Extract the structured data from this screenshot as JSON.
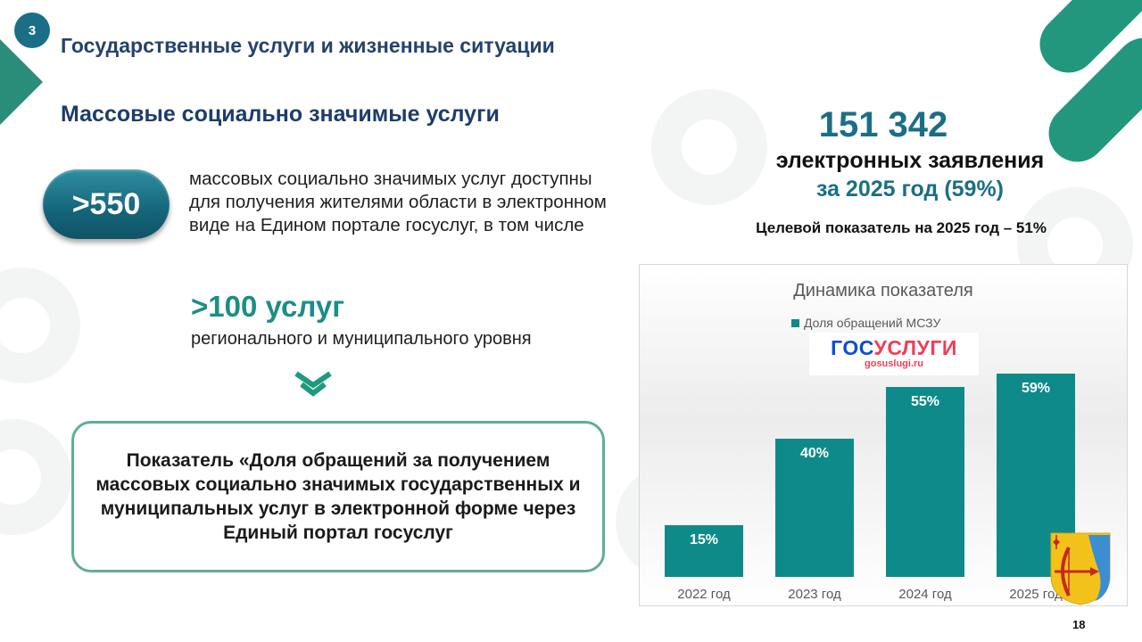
{
  "slide_number": "3",
  "page_title": "Государственные услуги и жизненные ситуации",
  "section_title": "Массовые социально значимые услуги",
  "services": {
    "count": ">550",
    "description": "массовых социально значимых услуг доступны для получения жителями области в электронном виде на Едином портале госуслуг, в том числе",
    "regional_count": ">100 услуг",
    "regional_text": "регионального и муниципального уровня"
  },
  "indicator_text": "Показатель «Доля обращений за получением массовых социально значимых государственных и муниципальных услуг в электронной форме через Единый портал госуслуг",
  "stats": {
    "applications_number": "151 342",
    "applications_label": "электронных заявления",
    "year_label": "за 2025 год (59%)",
    "target": "Целевой показатель на 2025 год – 51%"
  },
  "gosuslugi_logo": {
    "part1": "ГОС",
    "part2": "УСЛУГИ",
    "url": "gosuslugi.ru"
  },
  "chart_data": {
    "type": "bar",
    "title": "Динамика показателя",
    "legend_position": "top",
    "grid": false,
    "categories": [
      "2022 год",
      "2023 год",
      "2024 год",
      "2025 год"
    ],
    "series": [
      {
        "name": "Доля обращений МСЗУ",
        "values": [
          15,
          40,
          55,
          59
        ],
        "labels": [
          "15%",
          "40%",
          "55%",
          "59%"
        ]
      }
    ],
    "color": "#0f8a8a"
  },
  "page_number": "18",
  "colors": {
    "accent": "#1a6f86",
    "teal": "#0f8a8a",
    "green": "#23977d",
    "title": "#24426e"
  }
}
